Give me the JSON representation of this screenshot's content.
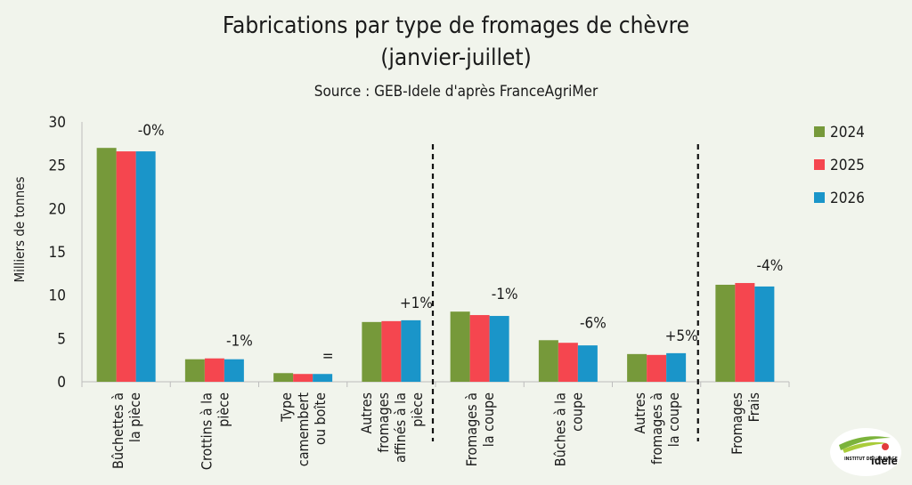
{
  "title_line1": "Fabrications par type de fromages de chèvre",
  "title_line2": "(janvier-juillet)",
  "subtitle": "Source : GEB-Idele d'après FranceAgriMer",
  "logo": {
    "top": "INSTITUT DE L'ÉLEVAGE",
    "name": "idele"
  },
  "chart_data": {
    "type": "bar",
    "ylabel": "Milliers de tonnes",
    "ylim": [
      0,
      30
    ],
    "yticks": [
      0,
      5,
      10,
      15,
      20,
      25,
      30
    ],
    "grid": false,
    "legend_position": "right",
    "categories": [
      [
        "Bûchettes à",
        "la pièce"
      ],
      [
        "Crottins à la",
        "pièce"
      ],
      [
        "Type",
        "camembert",
        "ou boîte"
      ],
      [
        "Autres",
        "fromages",
        "affinés à la",
        "pièce"
      ],
      [
        "Fromages à",
        "la coupe"
      ],
      [
        "Bûches à la",
        "coupe"
      ],
      [
        "Autres",
        "fromages à",
        "la coupe"
      ],
      [
        "Fromages",
        "Frais"
      ]
    ],
    "series": [
      {
        "name": "2024",
        "color": "#76993a",
        "values": [
          27.0,
          2.6,
          1.0,
          6.9,
          8.1,
          4.8,
          3.2,
          11.2
        ]
      },
      {
        "name": "2025",
        "color": "#f5464f",
        "values": [
          26.6,
          2.7,
          0.9,
          7.0,
          7.7,
          4.5,
          3.1,
          11.4
        ]
      },
      {
        "name": "2026",
        "color": "#1a95c9",
        "values": [
          26.6,
          2.6,
          0.9,
          7.1,
          7.6,
          4.2,
          3.3,
          11.0
        ]
      }
    ],
    "annotations": [
      "-0%",
      "-1%",
      "=",
      "+1%",
      "-1%",
      "-6%",
      "+5%",
      "-4%"
    ],
    "separators_after_category": [
      3,
      6
    ]
  }
}
